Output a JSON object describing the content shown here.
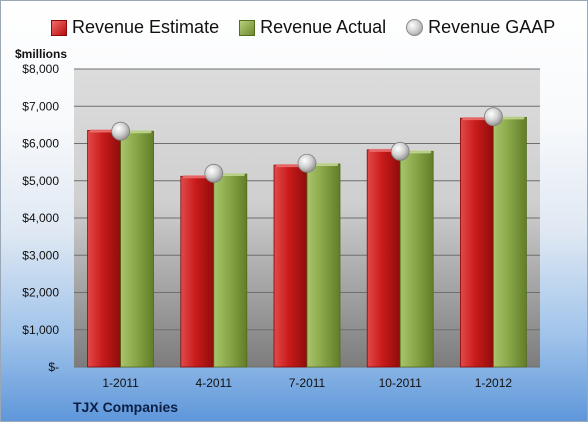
{
  "colors": {
    "estimate": "#c41a1a",
    "actual": "#8fae50",
    "gaap": "#c8c8c8"
  },
  "chart_data": {
    "type": "bar",
    "units_label": "$millions",
    "categories": [
      "1-2011",
      "4-2011",
      "7-2011",
      "10-2011",
      "1-2012"
    ],
    "series": [
      {
        "name": "Revenue Estimate",
        "type": "bar",
        "values": [
          6350,
          5120,
          5420,
          5830,
          6680
        ]
      },
      {
        "name": "Revenue Actual",
        "type": "bar",
        "values": [
          6330,
          5180,
          5450,
          5790,
          6700
        ]
      },
      {
        "name": "Revenue GAAP",
        "type": "scatter",
        "values": [
          6330,
          5200,
          5470,
          5790,
          6720
        ]
      }
    ],
    "ylim": [
      0,
      8000
    ],
    "yticks": [
      0,
      1000,
      2000,
      3000,
      4000,
      5000,
      6000,
      7000,
      8000
    ],
    "ytick_labels": [
      "$-",
      "$1,000",
      "$2,000",
      "$3,000",
      "$4,000",
      "$5,000",
      "$6,000",
      "$7,000",
      "$8,000"
    ],
    "grid": true,
    "legend_position": "top",
    "company": "TJX Companies"
  }
}
